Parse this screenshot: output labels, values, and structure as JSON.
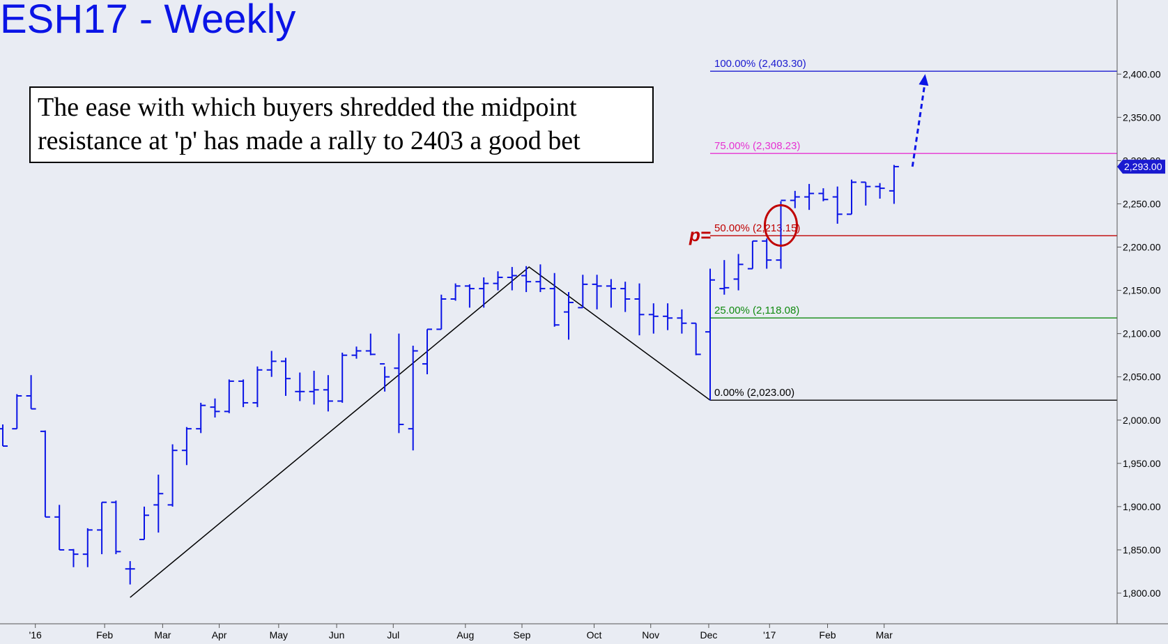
{
  "title": "ESH17 - Weekly",
  "annotation": {
    "line1": "The ease with which buyers shredded the midpoint",
    "line2": "resistance at 'p' has made a rally to 2403 a good bet"
  },
  "colors": {
    "background": "#e9ecf3",
    "bars": "#0a14e6",
    "fib_100": "#1a1ad0",
    "fib_75": "#e632d2",
    "fib_50": "#c00000",
    "fib_25": "#108a10",
    "fib_0": "#000000",
    "abc_lines": "#000000",
    "circle": "#c00000",
    "last_price_tag": "#1a1ad0"
  },
  "chart_data": {
    "type": "ohlc",
    "title": "ESH17 - Weekly",
    "ylim": [
      1775,
      2500
    ],
    "y_ticks": [
      "1,800.00",
      "1,850.00",
      "1,900.00",
      "1,950.00",
      "2,000.00",
      "2,050.00",
      "2,100.00",
      "2,150.00",
      "2,200.00",
      "2,250.00",
      "2,300.00",
      "2,350.00",
      "2,400.00"
    ],
    "x_ticks": [
      {
        "label": "'16",
        "week": 2.3
      },
      {
        "label": "Feb",
        "week": 7.2
      },
      {
        "label": "Mar",
        "week": 11.3
      },
      {
        "label": "Apr",
        "week": 15.3
      },
      {
        "label": "May",
        "week": 19.5
      },
      {
        "label": "Jun",
        "week": 23.6
      },
      {
        "label": "Jul",
        "week": 27.6
      },
      {
        "label": "Aug",
        "week": 32.7
      },
      {
        "label": "Sep",
        "week": 36.7
      },
      {
        "label": "Oct",
        "week": 41.8
      },
      {
        "label": "Nov",
        "week": 45.8
      },
      {
        "label": "Dec",
        "week": 49.9
      },
      {
        "label": "'17",
        "week": 54.2
      },
      {
        "label": "Feb",
        "week": 58.3
      },
      {
        "label": "Mar",
        "week": 62.3
      }
    ],
    "bars": [
      {
        "week": 0,
        "o": 1990,
        "h": 1995,
        "l": 1970,
        "c": 1970
      },
      {
        "week": 1,
        "o": 1990,
        "h": 2030,
        "l": 1990,
        "c": 2028
      },
      {
        "week": 2,
        "o": 2028,
        "h": 2052,
        "l": 2013,
        "c": 2013
      },
      {
        "week": 3,
        "o": 1987,
        "h": 1988,
        "l": 1888,
        "c": 1888
      },
      {
        "week": 4,
        "o": 1888,
        "h": 1902,
        "l": 1850,
        "c": 1850
      },
      {
        "week": 5,
        "o": 1850,
        "h": 1851,
        "l": 1830,
        "c": 1845
      },
      {
        "week": 6,
        "o": 1845,
        "h": 1875,
        "l": 1830,
        "c": 1873
      },
      {
        "week": 7,
        "o": 1873,
        "h": 1905,
        "l": 1845,
        "c": 1905
      },
      {
        "week": 8,
        "o": 1905,
        "h": 1907,
        "l": 1845,
        "c": 1848
      },
      {
        "week": 9,
        "o": 1828,
        "h": 1837,
        "l": 1810,
        "c": 1828
      },
      {
        "week": 10,
        "o": 1862,
        "h": 1900,
        "l": 1862,
        "c": 1890
      },
      {
        "week": 11,
        "o": 1902,
        "h": 1937,
        "l": 1870,
        "c": 1915
      },
      {
        "week": 12,
        "o": 1902,
        "h": 1972,
        "l": 1900,
        "c": 1965
      },
      {
        "week": 13,
        "o": 1965,
        "h": 1992,
        "l": 1948,
        "c": 1990
      },
      {
        "week": 14,
        "o": 1990,
        "h": 2020,
        "l": 1985,
        "c": 2017
      },
      {
        "week": 15,
        "o": 2015,
        "h": 2025,
        "l": 2003,
        "c": 2010
      },
      {
        "week": 16,
        "o": 2010,
        "h": 2047,
        "l": 2008,
        "c": 2045
      },
      {
        "week": 17,
        "o": 2045,
        "h": 2047,
        "l": 2015,
        "c": 2020
      },
      {
        "week": 18,
        "o": 2020,
        "h": 2062,
        "l": 2015,
        "c": 2058
      },
      {
        "week": 19,
        "o": 2058,
        "h": 2080,
        "l": 2050,
        "c": 2068
      },
      {
        "week": 20,
        "o": 2068,
        "h": 2072,
        "l": 2028,
        "c": 2048
      },
      {
        "week": 21,
        "o": 2033,
        "h": 2055,
        "l": 2022,
        "c": 2033
      },
      {
        "week": 22,
        "o": 2033,
        "h": 2057,
        "l": 2018,
        "c": 2035
      },
      {
        "week": 23,
        "o": 2035,
        "h": 2052,
        "l": 2010,
        "c": 2022
      },
      {
        "week": 24,
        "o": 2022,
        "h": 2078,
        "l": 2020,
        "c": 2075
      },
      {
        "week": 25,
        "o": 2075,
        "h": 2085,
        "l": 2071,
        "c": 2080
      },
      {
        "week": 26,
        "o": 2080,
        "h": 2100,
        "l": 2075,
        "c": 2076
      },
      {
        "week": 27,
        "o": 2065,
        "h": 2062,
        "l": 2033,
        "c": 2050
      },
      {
        "week": 28,
        "o": 2060,
        "h": 2100,
        "l": 1985,
        "c": 1995
      },
      {
        "week": 29,
        "o": 1990,
        "h": 2086,
        "l": 1965,
        "c": 2080
      },
      {
        "week": 30,
        "o": 2065,
        "h": 2105,
        "l": 2053,
        "c": 2105
      },
      {
        "week": 31,
        "o": 2105,
        "h": 2145,
        "l": 2105,
        "c": 2140
      },
      {
        "week": 32,
        "o": 2140,
        "h": 2158,
        "l": 2138,
        "c": 2155
      },
      {
        "week": 33,
        "o": 2155,
        "h": 2157,
        "l": 2130,
        "c": 2152
      },
      {
        "week": 34,
        "o": 2152,
        "h": 2165,
        "l": 2130,
        "c": 2158
      },
      {
        "week": 35,
        "o": 2158,
        "h": 2172,
        "l": 2150,
        "c": 2165
      },
      {
        "week": 36,
        "o": 2165,
        "h": 2177,
        "l": 2150,
        "c": 2167
      },
      {
        "week": 37,
        "o": 2167,
        "h": 2178,
        "l": 2148,
        "c": 2160
      },
      {
        "week": 38,
        "o": 2160,
        "h": 2180,
        "l": 2148,
        "c": 2152
      },
      {
        "week": 39,
        "o": 2152,
        "h": 2170,
        "l": 2108,
        "c": 2110
      },
      {
        "week": 40,
        "o": 2125,
        "h": 2148,
        "l": 2093,
        "c": 2136
      },
      {
        "week": 41,
        "o": 2130,
        "h": 2168,
        "l": 2130,
        "c": 2157
      },
      {
        "week": 42,
        "o": 2157,
        "h": 2168,
        "l": 2128,
        "c": 2155
      },
      {
        "week": 43,
        "o": 2155,
        "h": 2163,
        "l": 2130,
        "c": 2152
      },
      {
        "week": 44,
        "o": 2152,
        "h": 2160,
        "l": 2125,
        "c": 2140
      },
      {
        "week": 45,
        "o": 2140,
        "h": 2158,
        "l": 2098,
        "c": 2122
      },
      {
        "week": 46,
        "o": 2122,
        "h": 2135,
        "l": 2100,
        "c": 2120
      },
      {
        "week": 47,
        "o": 2120,
        "h": 2135,
        "l": 2104,
        "c": 2118
      },
      {
        "week": 48,
        "o": 2118,
        "h": 2128,
        "l": 2100,
        "c": 2112
      },
      {
        "week": 49,
        "o": 2112,
        "h": 2112,
        "l": 2075,
        "c": 2076
      },
      {
        "week": 50,
        "o": 2102,
        "h": 2175,
        "l": 2023,
        "c": 2162
      },
      {
        "week": 51,
        "o": 2152,
        "h": 2185,
        "l": 2145,
        "c": 2153
      },
      {
        "week": 52,
        "o": 2163,
        "h": 2192,
        "l": 2150,
        "c": 2180
      },
      {
        "week": 53,
        "o": 2175,
        "h": 2207,
        "l": 2175,
        "c": 2207
      },
      {
        "week": 54,
        "o": 2207,
        "h": 2210,
        "l": 2175,
        "c": 2185
      },
      {
        "week": 55,
        "o": 2185,
        "h": 2253,
        "l": 2175,
        "c": 2254
      },
      {
        "week": 56,
        "o": 2254,
        "h": 2265,
        "l": 2245,
        "c": 2258
      },
      {
        "week": 57,
        "o": 2258,
        "h": 2273,
        "l": 2243,
        "c": 2262
      },
      {
        "week": 58,
        "o": 2262,
        "h": 2268,
        "l": 2253,
        "c": 2255
      },
      {
        "week": 59,
        "o": 2258,
        "h": 2270,
        "l": 2227,
        "c": 2238
      },
      {
        "week": 60,
        "o": 2238,
        "h": 2278,
        "l": 2238,
        "c": 2275
      },
      {
        "week": 61,
        "o": 2275,
        "h": 2275,
        "l": 2248,
        "c": 2270
      },
      {
        "week": 62,
        "o": 2270,
        "h": 2274,
        "l": 2256,
        "c": 2268
      },
      {
        "week": 63,
        "o": 2265,
        "h": 2295,
        "l": 2250,
        "c": 2293
      }
    ],
    "fib_levels": [
      {
        "label": "100.00% (2,403.30)",
        "value": 2403.3,
        "color_key": "fib_100"
      },
      {
        "label": "75.00% (2,308.23)",
        "value": 2308.23,
        "color_key": "fib_75"
      },
      {
        "label": "50.00% (2,213.15)",
        "value": 2213.15,
        "color_key": "fib_50"
      },
      {
        "label": "25.00% (2,118.08)",
        "value": 2118.08,
        "color_key": "fib_25"
      },
      {
        "label": "0.00% (2,023.00)",
        "value": 2023.0,
        "color_key": "fib_0"
      }
    ],
    "abc_points": [
      {
        "week": 9,
        "value": 1795
      },
      {
        "week": 37.2,
        "value": 2177
      },
      {
        "week": 50,
        "value": 2023
      }
    ],
    "p_marker": {
      "label": "p=",
      "week": 55,
      "value": 2225
    },
    "projection": {
      "from": {
        "week": 64.3,
        "value": 2293
      },
      "to": {
        "week": 65.2,
        "value": 2400
      }
    },
    "last_price": {
      "label": "2,293.00",
      "value": 2293.0
    }
  }
}
